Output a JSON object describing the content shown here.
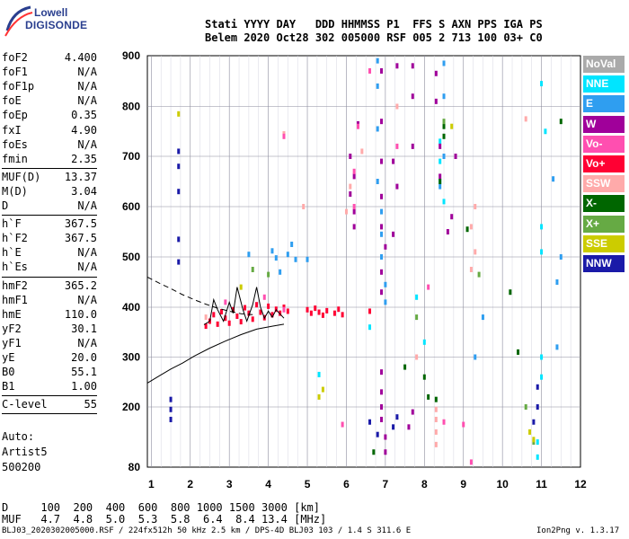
{
  "logo": {
    "line1": "Lowell",
    "line2": "DIGISONDE"
  },
  "header": {
    "line1": "Stati YYYY DAY   DDD HHMMSS P1  FFS S AXN PPS IGA PS",
    "line2": "Belem 2020 Oct28 302 005000 RSF 005 2 713 100 03+ C0"
  },
  "params_group1": [
    {
      "name": "foF2",
      "value": "4.400"
    },
    {
      "name": "foF1",
      "value": "N/A"
    },
    {
      "name": "foF1p",
      "value": "N/A"
    },
    {
      "name": "foE",
      "value": "N/A"
    },
    {
      "name": "foEp",
      "value": "0.35"
    },
    {
      "name": "fxI",
      "value": "4.90"
    },
    {
      "name": "foEs",
      "value": "N/A"
    },
    {
      "name": "fmin",
      "value": "2.35"
    }
  ],
  "params_group2": [
    {
      "name": "MUF(D)",
      "value": "13.37"
    },
    {
      "name": "M(D)",
      "value": "3.04"
    },
    {
      "name": "D",
      "value": "N/A"
    }
  ],
  "params_group3": [
    {
      "name": "h`F",
      "value": "367.5"
    },
    {
      "name": "h`F2",
      "value": "367.5"
    },
    {
      "name": "h`E",
      "value": "N/A"
    },
    {
      "name": "h`Es",
      "value": "N/A"
    }
  ],
  "params_group4": [
    {
      "name": "hmF2",
      "value": "365.2"
    },
    {
      "name": "hmF1",
      "value": "N/A"
    },
    {
      "name": "hmE",
      "value": "110.0"
    },
    {
      "name": "yF2",
      "value": "30.1"
    },
    {
      "name": "yF1",
      "value": "N/A"
    },
    {
      "name": "yE",
      "value": "20.0"
    },
    {
      "name": "B0",
      "value": "55.1"
    },
    {
      "name": "B1",
      "value": "1.00"
    }
  ],
  "params_group5": [
    {
      "name": "C-level",
      "value": "55"
    }
  ],
  "auto": {
    "line1": "Auto:",
    "line2": "Artist5",
    "line3": "500200"
  },
  "muf_table": {
    "d_row": "D     100  200  400  600  800 1000 1500 3000 [km]",
    "muf_row": "MUF   4.7  4.8  5.0  5.3  5.8  6.4  8.4 13.4 [MHz]"
  },
  "footer": {
    "left": "BLJ03_2020302005000.RSF / 224fx512h 50 kHz 2.5 km / DPS-4D BLJ03 103 / 1.4 S 311.6 E",
    "right": "Ion2Png v. 1.3.17"
  },
  "legend": [
    {
      "label": "NoVal",
      "color": "#aaaaaa"
    },
    {
      "label": "NNE",
      "color": "#00e5ff"
    },
    {
      "label": "E",
      "color": "#2f9ef0"
    },
    {
      "label": "W",
      "color": "#a0009a"
    },
    {
      "label": "Vo-",
      "color": "#ff4fb0"
    },
    {
      "label": "Vo+",
      "color": "#ff0033"
    },
    {
      "label": "SSW",
      "color": "#ffaaaa"
    },
    {
      "label": "X-",
      "color": "#006600"
    },
    {
      "label": "X+",
      "color": "#66aa44"
    },
    {
      "label": "SSE",
      "color": "#cccc00"
    },
    {
      "label": "NNW",
      "color": "#1a1aa8"
    }
  ],
  "chart_data": {
    "type": "scatter",
    "title": "",
    "xlabel": "",
    "ylabel": "",
    "xlim": [
      0.9,
      12
    ],
    "ylim": [
      80,
      900
    ],
    "x_ticks": [
      "1",
      "2",
      "3",
      "4",
      "5",
      "6",
      "7",
      "8",
      "9",
      "10",
      "11",
      "12"
    ],
    "y_ticks": [
      "900",
      "800",
      "700",
      "600",
      "500",
      "400",
      "300",
      "200",
      "80"
    ],
    "y_tick_values": [
      900,
      800,
      700,
      600,
      500,
      400,
      300,
      200,
      80
    ],
    "grid": true,
    "legend_position": "right",
    "series": [
      {
        "name": "Vo+",
        "points": [
          [
            2.4,
            362
          ],
          [
            2.5,
            372
          ],
          [
            2.6,
            385
          ],
          [
            2.7,
            366
          ],
          [
            2.8,
            391
          ],
          [
            2.9,
            378
          ],
          [
            3.0,
            368
          ],
          [
            3.1,
            395
          ],
          [
            3.2,
            382
          ],
          [
            3.3,
            371
          ],
          [
            3.4,
            399
          ],
          [
            3.5,
            388
          ],
          [
            3.6,
            376
          ],
          [
            3.7,
            405
          ],
          [
            3.8,
            390
          ],
          [
            3.9,
            379
          ],
          [
            4.0,
            402
          ],
          [
            4.1,
            385
          ],
          [
            4.2,
            396
          ],
          [
            4.3,
            388
          ],
          [
            4.4,
            400
          ],
          [
            4.5,
            392
          ],
          [
            5.0,
            395
          ],
          [
            5.1,
            388
          ],
          [
            5.2,
            398
          ],
          [
            5.3,
            390
          ],
          [
            5.4,
            384
          ],
          [
            5.5,
            393
          ],
          [
            5.7,
            388
          ],
          [
            5.8,
            396
          ],
          [
            5.9,
            385
          ],
          [
            6.6,
            392
          ]
        ]
      },
      {
        "name": "E",
        "points": [
          [
            3.5,
            505
          ],
          [
            4.1,
            512
          ],
          [
            4.2,
            498
          ],
          [
            4.3,
            470
          ],
          [
            4.5,
            505
          ],
          [
            4.6,
            525
          ],
          [
            4.7,
            495
          ],
          [
            5.0,
            495
          ],
          [
            6.8,
            890
          ],
          [
            6.8,
            840
          ],
          [
            6.8,
            755
          ],
          [
            6.8,
            650
          ],
          [
            6.9,
            590
          ],
          [
            6.9,
            545
          ],
          [
            6.9,
            500
          ],
          [
            7.0,
            445
          ],
          [
            7.0,
            410
          ],
          [
            8.5,
            885
          ],
          [
            8.5,
            820
          ],
          [
            8.5,
            700
          ],
          [
            8.4,
            640
          ],
          [
            9.3,
            300
          ],
          [
            9.5,
            380
          ],
          [
            11.3,
            655
          ],
          [
            11.5,
            500
          ],
          [
            11.4,
            450
          ],
          [
            11.4,
            320
          ]
        ]
      },
      {
        "name": "NNE",
        "points": [
          [
            8.4,
            730
          ],
          [
            8.4,
            690
          ],
          [
            8.4,
            650
          ],
          [
            8.5,
            610
          ],
          [
            11.0,
            845
          ],
          [
            11.1,
            750
          ],
          [
            11.0,
            560
          ],
          [
            11.0,
            510
          ],
          [
            11.0,
            300
          ],
          [
            11.0,
            260
          ],
          [
            10.9,
            130
          ],
          [
            10.9,
            100
          ],
          [
            5.3,
            265
          ],
          [
            6.6,
            360
          ],
          [
            7.8,
            420
          ],
          [
            8.0,
            330
          ]
        ]
      },
      {
        "name": "W",
        "points": [
          [
            6.3,
            765
          ],
          [
            6.1,
            700
          ],
          [
            6.2,
            660
          ],
          [
            6.1,
            625
          ],
          [
            6.2,
            590
          ],
          [
            6.2,
            560
          ],
          [
            6.9,
            870
          ],
          [
            6.9,
            770
          ],
          [
            6.9,
            690
          ],
          [
            6.9,
            620
          ],
          [
            6.9,
            560
          ],
          [
            7.0,
            520
          ],
          [
            6.9,
            470
          ],
          [
            6.9,
            430
          ],
          [
            7.7,
            880
          ],
          [
            7.7,
            820
          ],
          [
            7.7,
            720
          ],
          [
            8.3,
            865
          ],
          [
            8.3,
            810
          ],
          [
            7.3,
            880
          ],
          [
            7.2,
            690
          ],
          [
            7.3,
            640
          ],
          [
            7.2,
            545
          ],
          [
            8.4,
            720
          ],
          [
            8.4,
            660
          ],
          [
            8.8,
            700
          ],
          [
            8.7,
            580
          ],
          [
            8.6,
            550
          ],
          [
            6.9,
            270
          ],
          [
            6.9,
            230
          ],
          [
            6.9,
            200
          ],
          [
            6.9,
            175
          ],
          [
            7.0,
            140
          ],
          [
            7.0,
            110
          ],
          [
            7.7,
            190
          ],
          [
            7.6,
            160
          ]
        ]
      },
      {
        "name": "NNW",
        "points": [
          [
            1.7,
            710
          ],
          [
            1.7,
            680
          ],
          [
            1.7,
            630
          ],
          [
            1.7,
            535
          ],
          [
            1.7,
            490
          ],
          [
            1.5,
            215
          ],
          [
            1.5,
            195
          ],
          [
            1.5,
            175
          ],
          [
            10.9,
            240
          ],
          [
            10.9,
            200
          ],
          [
            10.8,
            170
          ],
          [
            7.3,
            180
          ],
          [
            7.2,
            160
          ],
          [
            6.6,
            170
          ],
          [
            6.8,
            145
          ]
        ]
      },
      {
        "name": "X-",
        "points": [
          [
            8.5,
            760
          ],
          [
            8.5,
            740
          ],
          [
            8.4,
            650
          ],
          [
            9.1,
            555
          ],
          [
            10.2,
            430
          ],
          [
            10.4,
            310
          ],
          [
            11.5,
            770
          ],
          [
            8.1,
            220
          ],
          [
            8.3,
            215
          ],
          [
            6.7,
            110
          ],
          [
            7.5,
            280
          ],
          [
            8.0,
            260
          ]
        ]
      },
      {
        "name": "X+",
        "points": [
          [
            8.5,
            770
          ],
          [
            9.4,
            465
          ],
          [
            10.6,
            200
          ],
          [
            10.8,
            130
          ],
          [
            7.8,
            380
          ],
          [
            4.0,
            465
          ],
          [
            3.6,
            475
          ]
        ]
      },
      {
        "name": "SSW",
        "points": [
          [
            4.4,
            745
          ],
          [
            6.4,
            710
          ],
          [
            6.1,
            640
          ],
          [
            9.3,
            600
          ],
          [
            9.2,
            560
          ],
          [
            9.3,
            510
          ],
          [
            9.2,
            475
          ],
          [
            10.6,
            775
          ],
          [
            8.3,
            195
          ],
          [
            8.3,
            175
          ],
          [
            8.3,
            150
          ],
          [
            8.3,
            125
          ],
          [
            7.8,
            300
          ],
          [
            6.0,
            590
          ],
          [
            7.3,
            800
          ],
          [
            4.9,
            600
          ],
          [
            2.4,
            380
          ]
        ]
      },
      {
        "name": "SSE",
        "points": [
          [
            1.7,
            785
          ],
          [
            5.4,
            235
          ],
          [
            5.3,
            220
          ],
          [
            10.7,
            150
          ],
          [
            10.8,
            135
          ],
          [
            8.7,
            760
          ],
          [
            3.3,
            440
          ]
        ]
      },
      {
        "name": "Vo-",
        "points": [
          [
            6.6,
            870
          ],
          [
            6.3,
            760
          ],
          [
            6.2,
            670
          ],
          [
            6.2,
            600
          ],
          [
            7.3,
            720
          ],
          [
            9.0,
            165
          ],
          [
            9.2,
            90
          ],
          [
            8.1,
            440
          ],
          [
            8.5,
            170
          ],
          [
            4.4,
            740
          ],
          [
            5.9,
            165
          ],
          [
            2.9,
            410
          ],
          [
            3.9,
            420
          ],
          [
            4.4,
            395
          ]
        ]
      }
    ],
    "traces": [
      {
        "name": "profile",
        "style": "solid",
        "points": [
          [
            0.9,
            248
          ],
          [
            1.2,
            262
          ],
          [
            1.5,
            276
          ],
          [
            1.8,
            288
          ],
          [
            2.1,
            302
          ],
          [
            2.5,
            318
          ],
          [
            2.9,
            332
          ],
          [
            3.3,
            345
          ],
          [
            3.7,
            356
          ],
          [
            4.1,
            362
          ],
          [
            4.4,
            366
          ]
        ]
      },
      {
        "name": "extrapolation",
        "style": "dashed",
        "points": [
          [
            0.9,
            460
          ],
          [
            1.2,
            448
          ],
          [
            1.5,
            437
          ],
          [
            1.8,
            425
          ],
          [
            2.1,
            415
          ],
          [
            2.4,
            406
          ],
          [
            2.7,
            398
          ],
          [
            3.0,
            392
          ],
          [
            3.3,
            387
          ],
          [
            3.6,
            385
          ]
        ]
      },
      {
        "name": "trace",
        "style": "solid",
        "points": [
          [
            2.35,
            365
          ],
          [
            2.5,
            372
          ],
          [
            2.6,
            415
          ],
          [
            2.7,
            395
          ],
          [
            2.85,
            372
          ],
          [
            3.0,
            410
          ],
          [
            3.1,
            388
          ],
          [
            3.2,
            440
          ],
          [
            3.35,
            395
          ],
          [
            3.45,
            372
          ],
          [
            3.6,
            405
          ],
          [
            3.7,
            440
          ],
          [
            3.8,
            400
          ],
          [
            3.9,
            378
          ],
          [
            4.0,
            392
          ],
          [
            4.1,
            380
          ],
          [
            4.2,
            395
          ],
          [
            4.4,
            378
          ]
        ]
      }
    ]
  }
}
